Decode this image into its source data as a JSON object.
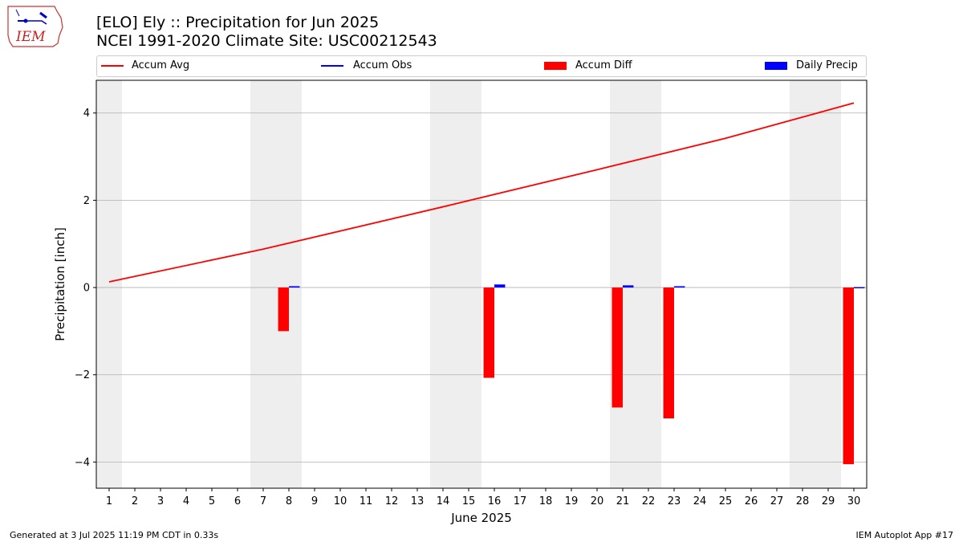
{
  "header": {
    "title_line1": "[ELO] Ely :: Precipitation for Jun 2025",
    "title_line2": "NCEI 1991-2020 Climate Site: USC00212543"
  },
  "logo": {
    "text": "IEM",
    "icon": "iem-logo-icon"
  },
  "legend": {
    "items": [
      {
        "label": "Accum Avg",
        "kind": "line",
        "color": "#ff0000"
      },
      {
        "label": "Accum Obs",
        "kind": "line",
        "color": "#0000ff"
      },
      {
        "label": "Accum Diff",
        "kind": "bar",
        "color": "#ff0000"
      },
      {
        "label": "Daily Precip",
        "kind": "bar",
        "color": "#0000ff"
      }
    ]
  },
  "chart_data": {
    "type": "bar",
    "xlabel": "June 2025",
    "ylabel": "Precipitation [inch]",
    "xlim": [
      0.5,
      30.5
    ],
    "ylim": [
      -4.6,
      4.75
    ],
    "yticks": [
      4,
      2,
      0,
      -2,
      -4
    ],
    "ytick_labels": [
      "4",
      "2",
      "0",
      "−2",
      "−4"
    ],
    "xticks": [
      1,
      2,
      3,
      4,
      5,
      6,
      7,
      8,
      9,
      10,
      11,
      12,
      13,
      14,
      15,
      16,
      17,
      18,
      19,
      20,
      21,
      22,
      23,
      24,
      25,
      26,
      27,
      28,
      29,
      30
    ],
    "grid": "horizontal",
    "weekend_shading": [
      [
        0.5,
        1.5
      ],
      [
        6.5,
        8.5
      ],
      [
        13.5,
        15.5
      ],
      [
        20.5,
        22.5
      ],
      [
        27.5,
        29.5
      ]
    ],
    "series": [
      {
        "name": "Accum Avg",
        "type": "line",
        "color": "#ff0000",
        "x": [
          1,
          7,
          14,
          20,
          25,
          30
        ],
        "y": [
          0.13,
          0.88,
          1.85,
          2.7,
          3.42,
          4.23
        ]
      },
      {
        "name": "Accum Diff",
        "type": "bar",
        "color": "#ff0000",
        "x": [
          8,
          16,
          21,
          23,
          30
        ],
        "y": [
          -1.0,
          -2.07,
          -2.75,
          -3.0,
          -4.05
        ]
      },
      {
        "name": "Daily Precip",
        "type": "bar",
        "color": "#0000ff",
        "x": [
          8,
          16,
          21,
          23,
          30
        ],
        "y": [
          0.03,
          0.07,
          0.05,
          0.03,
          0.01
        ]
      }
    ]
  },
  "footer": {
    "left": "Generated at 3 Jul 2025 11:19 PM CDT in 0.33s",
    "right": "IEM Autoplot App #17"
  }
}
